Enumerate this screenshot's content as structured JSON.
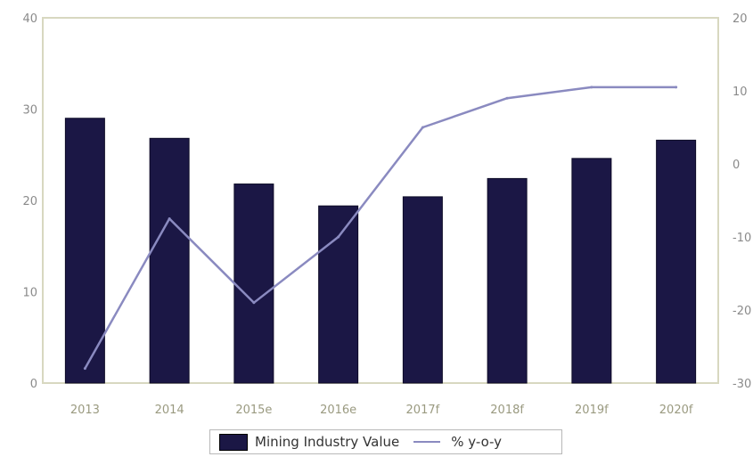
{
  "chart_data": {
    "type": "bar",
    "categories": [
      "2013",
      "2014",
      "2015e",
      "2016e",
      "2017f",
      "2018f",
      "2019f",
      "2020f"
    ],
    "series": [
      {
        "name": "Mining Industry Value",
        "type": "bar",
        "axis": "left",
        "values": [
          29,
          26.8,
          21.8,
          19.4,
          20.4,
          22.4,
          24.6,
          26.6
        ]
      },
      {
        "name": "% y-o-y",
        "type": "line",
        "axis": "right",
        "values": [
          -28,
          -7.5,
          -19,
          -10,
          5,
          9,
          10.5,
          10.5
        ]
      }
    ],
    "ylim": [
      0,
      40
    ],
    "yticks": [
      0,
      10,
      20,
      30,
      40
    ],
    "y2lim": [
      -30,
      20
    ],
    "y2ticks": [
      -30,
      -20,
      -10,
      0,
      10,
      20
    ],
    "title": "",
    "xlabel": "",
    "ylabel": "",
    "y2label": "",
    "grid": false,
    "legend_position": "bottom",
    "colors": {
      "bar": "#1b1745",
      "line": "#8a8ac0",
      "axis": "#d8d8c0"
    }
  }
}
